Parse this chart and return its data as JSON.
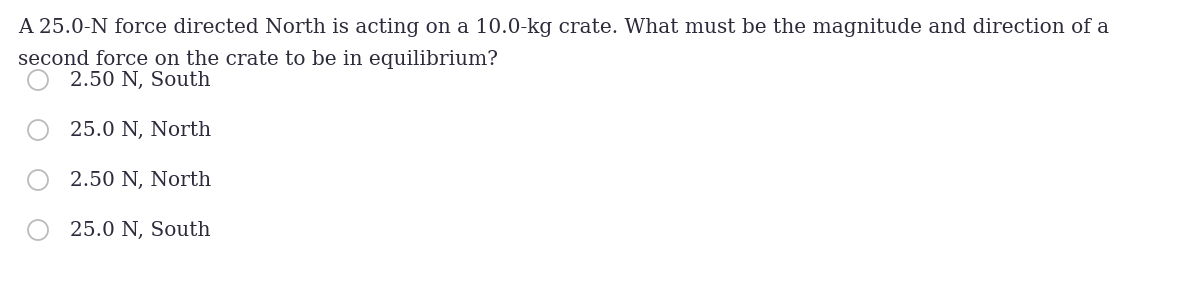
{
  "question_line1": "A 25.0-N force directed North is acting on a 10.0-kg crate. What must be the magnitude and direction of a",
  "question_line2": "second force on the crate to be in equilibrium?",
  "options": [
    "2.50 N, South",
    "25.0 N, North",
    "2.50 N, North",
    "25.0 N, South"
  ],
  "background_color": "#ffffff",
  "text_color": "#2b2b3b",
  "font_size_question": 14.5,
  "font_size_options": 14.5,
  "circle_edge_color": "#bbbbbb",
  "circle_face_color": "#ffffff"
}
